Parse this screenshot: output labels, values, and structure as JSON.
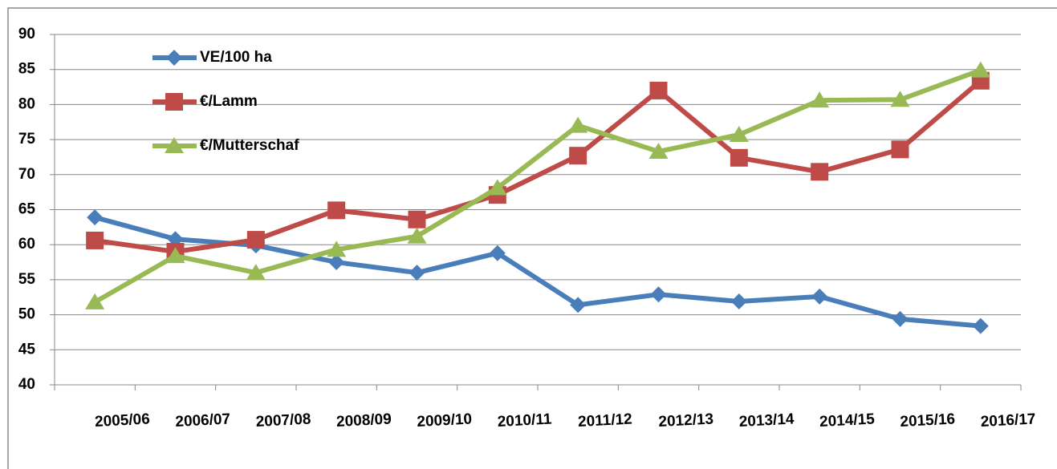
{
  "chart_data": {
    "type": "line",
    "categories": [
      "2005/06",
      "2006/07",
      "2007/08",
      "2008/09",
      "2009/10",
      "2010/11",
      "2011/12",
      "2012/13",
      "2013/14",
      "2014/15",
      "2015/16",
      "2016/17"
    ],
    "series": [
      {
        "name": "VE/100 ha",
        "color": "#4a7ebb",
        "marker": "diamond",
        "values": [
          63.9,
          60.8,
          59.9,
          57.5,
          56.0,
          58.8,
          51.4,
          52.9,
          51.9,
          52.6,
          49.4,
          48.4
        ]
      },
      {
        "name": "€/Lamm",
        "color": "#be4b48",
        "marker": "square",
        "values": [
          60.6,
          59.0,
          60.7,
          64.9,
          63.6,
          67.1,
          72.7,
          82.0,
          72.4,
          70.4,
          73.6,
          83.4
        ]
      },
      {
        "name": "€/Mutterschaf",
        "color": "#98b954",
        "marker": "triangle",
        "values": [
          51.8,
          58.4,
          56.0,
          59.3,
          61.2,
          68.1,
          77.0,
          73.3,
          75.7,
          80.6,
          80.7,
          84.9
        ]
      }
    ],
    "ylim": [
      40,
      90
    ],
    "yticks": [
      40,
      45,
      50,
      55,
      60,
      65,
      70,
      75,
      80,
      85,
      90
    ],
    "grid": true,
    "legend": "top-left"
  }
}
